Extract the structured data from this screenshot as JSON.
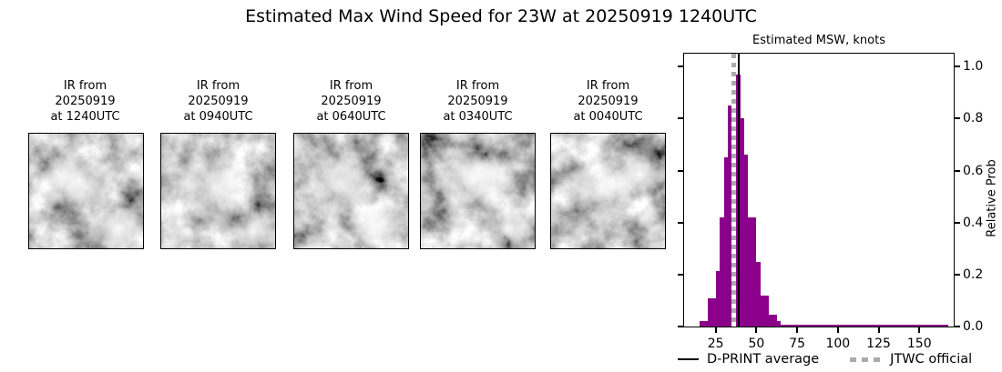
{
  "title": "Estimated Max Wind Speed for 23W at 20250919 1240UTC",
  "ir_panels": [
    {
      "label": "IR from\n20250919\nat 1240UTC"
    },
    {
      "label": "IR from\n20250919\nat 0940UTC"
    },
    {
      "label": "IR from\n20250919\nat 0640UTC"
    },
    {
      "label": "IR from\n20250919\nat 0340UTC"
    },
    {
      "label": "IR from\n20250919\nat 0040UTC"
    }
  ],
  "chart": {
    "title": "Estimated MSW, knots",
    "ylabel": "Relative Prob",
    "legend": [
      {
        "label": "D-PRINT average",
        "style": "solid",
        "color": "#000000"
      },
      {
        "label": "JTWC official",
        "style": "dotted",
        "color": "#ababab"
      }
    ]
  },
  "chart_data": {
    "type": "bar",
    "title": "Estimated MSW, knots",
    "xlabel": "",
    "ylabel": "Relative Prob",
    "bar_color": "#8B008B",
    "grid": false,
    "legend_position": "below",
    "xlim": [
      5.6,
      171.1
    ],
    "ylim": [
      0,
      1.05
    ],
    "xticks": [
      25,
      50,
      75,
      100,
      125,
      150
    ],
    "yticks": [
      "0.0",
      "0.2",
      "0.4",
      "0.6",
      "0.8",
      "1.0"
    ],
    "bins": [
      [
        15,
        17.5,
        0.02
      ],
      [
        17.5,
        20,
        0.02
      ],
      [
        20,
        22.5,
        0.11
      ],
      [
        22.5,
        25,
        0.11
      ],
      [
        25,
        27.5,
        0.215
      ],
      [
        27.5,
        30,
        0.42
      ],
      [
        30,
        32.5,
        0.65
      ],
      [
        32.5,
        35,
        0.85
      ],
      [
        35,
        37.5,
        0.97
      ],
      [
        37.5,
        40,
        0.97
      ],
      [
        40,
        42.5,
        0.8
      ],
      [
        42.5,
        45,
        0.66
      ],
      [
        45,
        47.5,
        0.42
      ],
      [
        47.5,
        50,
        0.42
      ],
      [
        50,
        52.5,
        0.25
      ],
      [
        52.5,
        55,
        0.12
      ],
      [
        55,
        57.5,
        0.12
      ],
      [
        57.5,
        60,
        0.046
      ],
      [
        60,
        62.5,
        0.046
      ],
      [
        62.5,
        65,
        0.02
      ],
      [
        65,
        168,
        0.008
      ]
    ],
    "vlines": [
      {
        "label": "D-PRINT average",
        "x": 39.0,
        "style": "solid",
        "color": "#000000"
      },
      {
        "label": "JTWC official",
        "x": 36.0,
        "style": "dotted",
        "color": "#ababab"
      }
    ]
  }
}
